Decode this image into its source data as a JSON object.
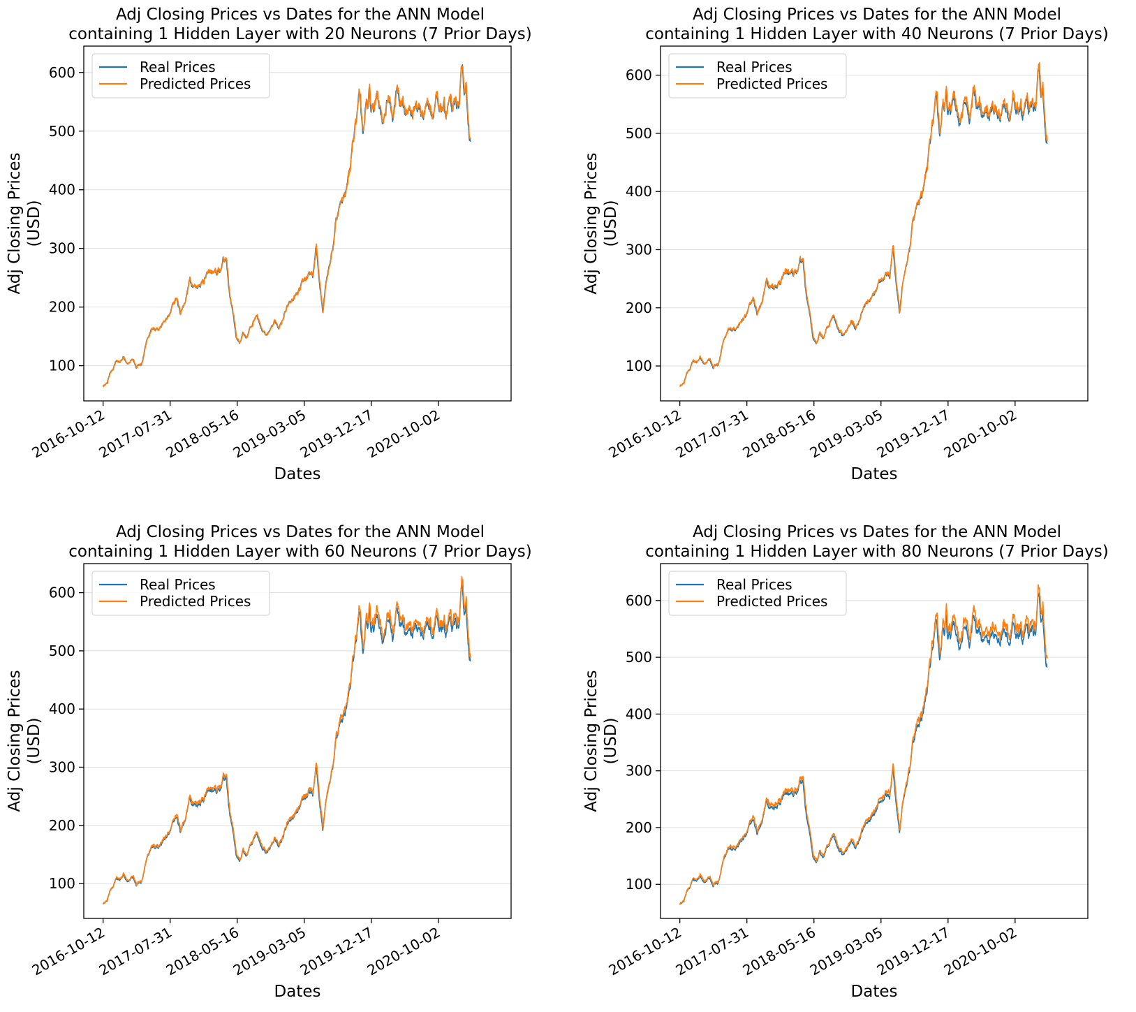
{
  "colors": {
    "real": "#1f77b4",
    "predicted": "#ff7f0e",
    "grid": "#dddddd",
    "axis": "#000000"
  },
  "chart_data": [
    {
      "type": "line",
      "title": [
        "Adj Closing Prices vs Dates for the ANN Model",
        "containing 1 Hidden Layer with 20 Neurons (7 Prior Days)"
      ],
      "xlabel": "Dates",
      "ylabel": [
        "Adj Closing Prices",
        "(USD)"
      ],
      "x_tick_labels": [
        "2016-10-12",
        "2017-07-31",
        "2018-05-16",
        "2019-03-05",
        "2019-12-17",
        "2020-10-02"
      ],
      "y_ticks": [
        100,
        200,
        300,
        400,
        500,
        600
      ],
      "xlim": [
        -58,
        1226
      ],
      "ylim": [
        40,
        645
      ],
      "grid": "y",
      "legend_position": "top-left",
      "series": [
        {
          "name": "Real Prices",
          "color_key": "real",
          "offset": 0
        },
        {
          "name": "Predicted Prices",
          "color_key": "predicted",
          "offset": 2
        }
      ]
    },
    {
      "type": "line",
      "title": [
        "Adj Closing Prices vs Dates for the ANN Model",
        "containing 1 Hidden Layer with 40 Neurons (7 Prior Days)"
      ],
      "xlabel": "Dates",
      "ylabel": [
        "Adj Closing Prices",
        "(USD)"
      ],
      "x_tick_labels": [
        "2016-10-12",
        "2017-07-31",
        "2018-05-16",
        "2019-03-05",
        "2019-12-17",
        "2020-10-02"
      ],
      "y_ticks": [
        100,
        200,
        300,
        400,
        500,
        600
      ],
      "xlim": [
        -58,
        1226
      ],
      "ylim": [
        40,
        650
      ],
      "grid": "y",
      "legend_position": "top-left",
      "series": [
        {
          "name": "Real Prices",
          "color_key": "real",
          "offset": 0
        },
        {
          "name": "Predicted Prices",
          "color_key": "predicted",
          "offset": 5
        }
      ]
    },
    {
      "type": "line",
      "title": [
        "Adj Closing Prices vs Dates for the ANN Model",
        "containing 1 Hidden Layer with 60 Neurons (7 Prior Days)"
      ],
      "xlabel": "Dates",
      "ylabel": [
        "Adj Closing Prices",
        "(USD)"
      ],
      "x_tick_labels": [
        "2016-10-12",
        "2017-07-31",
        "2018-05-16",
        "2019-03-05",
        "2019-12-17",
        "2020-10-02"
      ],
      "y_ticks": [
        100,
        200,
        300,
        400,
        500,
        600
      ],
      "xlim": [
        -58,
        1226
      ],
      "ylim": [
        40,
        650
      ],
      "grid": "y",
      "legend_position": "top-left",
      "series": [
        {
          "name": "Real Prices",
          "color_key": "real",
          "offset": 0
        },
        {
          "name": "Predicted Prices",
          "color_key": "predicted",
          "offset": 9
        }
      ]
    },
    {
      "type": "line",
      "title": [
        "Adj Closing Prices vs Dates for the ANN Model",
        "containing 1 Hidden Layer with 80 Neurons (7 Prior Days)"
      ],
      "xlabel": "Dates",
      "ylabel": [
        "Adj Closing Prices",
        "(USD)"
      ],
      "x_tick_labels": [
        "2016-10-12",
        "2017-07-31",
        "2018-05-16",
        "2019-03-05",
        "2019-12-17",
        "2020-10-02"
      ],
      "y_ticks": [
        100,
        200,
        300,
        400,
        500,
        600
      ],
      "xlim": [
        -58,
        1226
      ],
      "ylim": [
        40,
        665
      ],
      "grid": "y",
      "legend_position": "top-left",
      "series": [
        {
          "name": "Real Prices",
          "color_key": "real",
          "offset": 0
        },
        {
          "name": "Predicted Prices",
          "color_key": "predicted",
          "offset": 12
        }
      ]
    }
  ],
  "price_path": {
    "index": [
      0,
      5,
      12,
      20,
      30,
      40,
      50,
      60,
      75,
      90,
      100,
      105,
      115,
      130,
      145,
      165,
      180,
      200,
      210,
      220,
      232,
      245,
      260,
      280,
      300,
      320,
      340,
      355,
      360,
      370,
      375,
      380,
      390,
      400,
      410,
      420,
      430,
      440,
      450,
      460,
      470,
      480,
      490,
      505,
      515,
      525,
      535,
      545,
      560,
      575,
      590,
      605,
      620,
      630,
      640,
      650,
      660,
      670,
      680,
      690,
      700,
      715,
      730,
      745,
      760,
      770,
      780,
      785,
      790,
      795,
      800,
      805,
      810,
      815,
      820,
      830,
      840,
      850,
      860,
      870,
      880,
      895,
      900,
      910,
      920,
      930,
      940,
      950,
      960,
      970,
      980,
      990,
      1000,
      1010,
      1020,
      1030,
      1040,
      1050,
      1060,
      1070,
      1080,
      1085,
      1090,
      1095,
      1100
    ],
    "price": [
      65,
      68,
      70,
      88,
      93,
      108,
      105,
      115,
      105,
      110,
      98,
      103,
      100,
      142,
      158,
      165,
      172,
      185,
      205,
      215,
      190,
      208,
      245,
      235,
      245,
      260,
      255,
      265,
      285,
      278,
      252,
      220,
      195,
      150,
      140,
      155,
      142,
      160,
      175,
      190,
      178,
      160,
      148,
      165,
      178,
      165,
      170,
      188,
      205,
      215,
      225,
      245,
      255,
      250,
      300,
      245,
      195,
      250,
      275,
      300,
      352,
      380,
      400,
      450,
      520,
      565,
      495,
      510,
      555,
      540,
      575,
      525,
      540,
      535,
      560,
      550,
      520,
      545,
      555,
      525,
      570,
      545,
      560,
      520,
      540,
      530,
      545,
      535,
      525,
      550,
      545,
      530,
      560,
      520,
      540,
      530,
      550,
      525,
      545,
      540,
      610,
      560,
      590,
      520,
      495
    ]
  }
}
